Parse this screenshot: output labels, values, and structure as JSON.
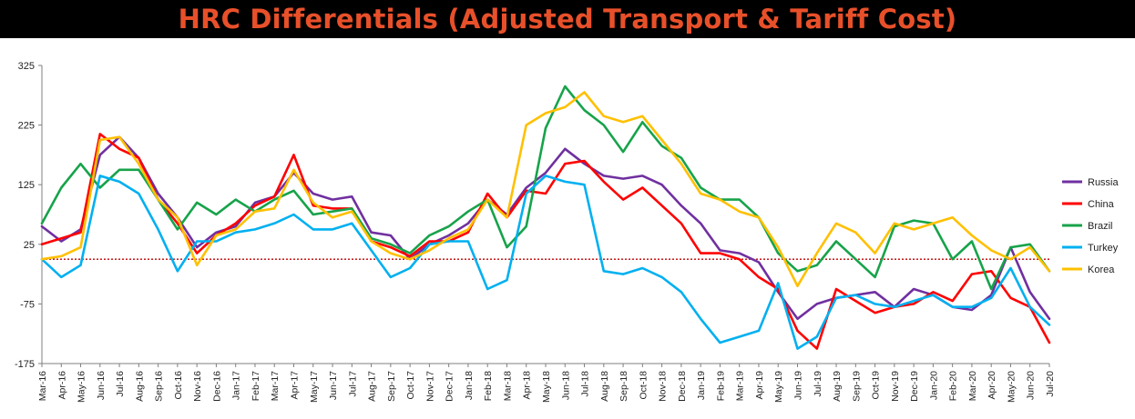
{
  "chart_data": {
    "type": "line",
    "title": "HRC Differentials (Adjusted Transport & Tariff Cost)",
    "xlabel": "",
    "ylabel": "",
    "ylim": [
      -175,
      325
    ],
    "yticks": [
      325,
      225,
      125,
      25,
      -75,
      -175
    ],
    "reference_line": {
      "y": 0,
      "style": "dotted",
      "color": "#c00000"
    },
    "x_labels": [
      "Mar-16",
      "Apr-16",
      "May-16",
      "Jun-16",
      "Jul-16",
      "Aug-16",
      "Sep-16",
      "Oct-16",
      "Nov-16",
      "Dec-16",
      "Jan-17",
      "Feb-17",
      "Mar-17",
      "Apr-17",
      "May-17",
      "Jun-17",
      "Jul-17",
      "Aug-17",
      "Sep-17",
      "Oct-17",
      "Nov-17",
      "Dec-17",
      "Jan-18",
      "Feb-18",
      "Mar-18",
      "Apr-18",
      "May-18",
      "Jun-18",
      "Jul-18",
      "Aug-18",
      "Sep-18",
      "Oct-18",
      "Nov-18",
      "Dec-18",
      "Jan-19",
      "Feb-19",
      "Mar-19",
      "Apr-19",
      "May-19",
      "Jun-19",
      "Jul-19",
      "Aug-19",
      "Sep-19",
      "Oct-19",
      "Nov-19",
      "Dec-19",
      "Jan-20",
      "Feb-20",
      "Mar-20",
      "Apr-20",
      "May-20",
      "Jun-20",
      "Jul-20"
    ],
    "legend": "right",
    "grid": false,
    "series": [
      {
        "name": "Russia",
        "color": "#7030a0",
        "values": [
          [
            0,
            55
          ],
          [
            1,
            30
          ],
          [
            2,
            50
          ],
          [
            3,
            175
          ],
          [
            4,
            205
          ],
          [
            5,
            170
          ],
          [
            6,
            110
          ],
          [
            7,
            70
          ],
          [
            8,
            20
          ],
          [
            9,
            45
          ],
          [
            10,
            55
          ],
          [
            11,
            95
          ],
          [
            12,
            105
          ],
          [
            13,
            145
          ],
          [
            14,
            110
          ],
          [
            15,
            100
          ],
          [
            16,
            105
          ],
          [
            17,
            45
          ],
          [
            18,
            40
          ],
          [
            19,
            0
          ],
          [
            20,
            25
          ],
          [
            21,
            40
          ],
          [
            22,
            60
          ],
          [
            23,
            100
          ],
          [
            24,
            75
          ],
          [
            25,
            120
          ],
          [
            26,
            145
          ],
          [
            27,
            185
          ],
          [
            28,
            160
          ],
          [
            29,
            140
          ],
          [
            30,
            135
          ],
          [
            31,
            140
          ],
          [
            32,
            125
          ],
          [
            33,
            90
          ],
          [
            34,
            60
          ],
          [
            35,
            15
          ],
          [
            36,
            10
          ],
          [
            37,
            -5
          ],
          [
            38,
            -55
          ],
          [
            39,
            -100
          ],
          [
            40,
            -75
          ],
          [
            41,
            -65
          ],
          [
            42,
            -60
          ],
          [
            43,
            -55
          ],
          [
            44,
            -80
          ],
          [
            45,
            -50
          ],
          [
            46,
            -60
          ],
          [
            47,
            -80
          ],
          [
            48,
            -85
          ],
          [
            49,
            -60
          ],
          [
            50,
            20
          ],
          [
            51,
            -55
          ],
          [
            52,
            -100
          ]
        ]
      },
      {
        "name": "China",
        "color": "#ff0000",
        "values": [
          [
            0,
            25
          ],
          [
            1,
            35
          ],
          [
            2,
            45
          ],
          [
            3,
            210
          ],
          [
            4,
            185
          ],
          [
            5,
            170
          ],
          [
            6,
            100
          ],
          [
            7,
            60
          ],
          [
            8,
            10
          ],
          [
            9,
            40
          ],
          [
            10,
            60
          ],
          [
            11,
            90
          ],
          [
            12,
            105
          ],
          [
            13,
            175
          ],
          [
            14,
            90
          ],
          [
            15,
            85
          ],
          [
            16,
            85
          ],
          [
            17,
            30
          ],
          [
            18,
            20
          ],
          [
            19,
            5
          ],
          [
            20,
            30
          ],
          [
            21,
            30
          ],
          [
            22,
            45
          ],
          [
            23,
            110
          ],
          [
            24,
            70
          ],
          [
            25,
            115
          ],
          [
            26,
            110
          ],
          [
            27,
            160
          ],
          [
            28,
            165
          ],
          [
            29,
            130
          ],
          [
            30,
            100
          ],
          [
            31,
            120
          ],
          [
            32,
            90
          ],
          [
            33,
            60
          ],
          [
            34,
            10
          ],
          [
            35,
            10
          ],
          [
            36,
            0
          ],
          [
            37,
            -30
          ],
          [
            38,
            -50
          ],
          [
            39,
            -120
          ],
          [
            40,
            -150
          ],
          [
            41,
            -50
          ],
          [
            42,
            -70
          ],
          [
            43,
            -90
          ],
          [
            44,
            -80
          ],
          [
            45,
            -75
          ],
          [
            46,
            -55
          ],
          [
            47,
            -70
          ],
          [
            48,
            -25
          ],
          [
            49,
            -20
          ],
          [
            50,
            -65
          ],
          [
            51,
            -80
          ],
          [
            52,
            -140
          ]
        ]
      },
      {
        "name": "Brazil",
        "color": "#17a34a",
        "values": [
          [
            0,
            60
          ],
          [
            1,
            120
          ],
          [
            2,
            160
          ],
          [
            3,
            120
          ],
          [
            4,
            150
          ],
          [
            5,
            150
          ],
          [
            6,
            100
          ],
          [
            7,
            50
          ],
          [
            8,
            95
          ],
          [
            9,
            75
          ],
          [
            10,
            100
          ],
          [
            11,
            80
          ],
          [
            12,
            100
          ],
          [
            13,
            115
          ],
          [
            14,
            75
          ],
          [
            15,
            80
          ],
          [
            16,
            85
          ],
          [
            17,
            35
          ],
          [
            18,
            25
          ],
          [
            19,
            10
          ],
          [
            20,
            40
          ],
          [
            21,
            55
          ],
          [
            22,
            80
          ],
          [
            23,
            100
          ],
          [
            24,
            20
          ],
          [
            25,
            55
          ],
          [
            26,
            220
          ],
          [
            27,
            290
          ],
          [
            28,
            250
          ],
          [
            29,
            225
          ],
          [
            30,
            180
          ],
          [
            31,
            230
          ],
          [
            32,
            190
          ],
          [
            33,
            170
          ],
          [
            34,
            120
          ],
          [
            35,
            100
          ],
          [
            36,
            100
          ],
          [
            37,
            70
          ],
          [
            38,
            10
          ],
          [
            39,
            -20
          ],
          [
            40,
            -10
          ],
          [
            41,
            30
          ],
          [
            42,
            0
          ],
          [
            43,
            -30
          ],
          [
            44,
            55
          ],
          [
            45,
            65
          ],
          [
            46,
            60
          ],
          [
            47,
            0
          ],
          [
            48,
            30
          ],
          [
            49,
            -50
          ],
          [
            50,
            20
          ],
          [
            51,
            25
          ],
          [
            52,
            -20
          ]
        ]
      },
      {
        "name": "Turkey",
        "color": "#00b0f0",
        "values": [
          [
            0,
            0
          ],
          [
            1,
            -30
          ],
          [
            2,
            -10
          ],
          [
            3,
            140
          ],
          [
            4,
            130
          ],
          [
            5,
            110
          ],
          [
            6,
            50
          ],
          [
            7,
            -20
          ],
          [
            8,
            30
          ],
          [
            9,
            30
          ],
          [
            10,
            45
          ],
          [
            11,
            50
          ],
          [
            12,
            60
          ],
          [
            13,
            75
          ],
          [
            14,
            50
          ],
          [
            15,
            50
          ],
          [
            16,
            60
          ],
          [
            17,
            15
          ],
          [
            18,
            -30
          ],
          [
            19,
            -15
          ],
          [
            20,
            25
          ],
          [
            21,
            30
          ],
          [
            22,
            30
          ],
          [
            23,
            -50
          ],
          [
            24,
            -35
          ],
          [
            25,
            110
          ],
          [
            26,
            140
          ],
          [
            27,
            130
          ],
          [
            28,
            125
          ],
          [
            29,
            -20
          ],
          [
            30,
            -25
          ],
          [
            31,
            -15
          ],
          [
            32,
            -30
          ],
          [
            33,
            -55
          ],
          [
            34,
            -100
          ],
          [
            35,
            -140
          ],
          [
            36,
            -130
          ],
          [
            37,
            -120
          ],
          [
            38,
            -40
          ],
          [
            39,
            -150
          ],
          [
            40,
            -130
          ],
          [
            41,
            -65
          ],
          [
            42,
            -60
          ],
          [
            43,
            -75
          ],
          [
            44,
            -80
          ],
          [
            45,
            -70
          ],
          [
            46,
            -60
          ],
          [
            47,
            -80
          ],
          [
            48,
            -80
          ],
          [
            49,
            -65
          ],
          [
            50,
            -15
          ],
          [
            51,
            -80
          ],
          [
            52,
            -110
          ]
        ]
      },
      {
        "name": "Korea",
        "color": "#ffc000",
        "values": [
          [
            0,
            0
          ],
          [
            1,
            5
          ],
          [
            2,
            20
          ],
          [
            3,
            200
          ],
          [
            4,
            205
          ],
          [
            5,
            160
          ],
          [
            6,
            100
          ],
          [
            7,
            70
          ],
          [
            8,
            -10
          ],
          [
            9,
            40
          ],
          [
            10,
            50
          ],
          [
            11,
            80
          ],
          [
            12,
            85
          ],
          [
            13,
            150
          ],
          [
            14,
            95
          ],
          [
            15,
            70
          ],
          [
            16,
            80
          ],
          [
            17,
            30
          ],
          [
            18,
            10
          ],
          [
            19,
            0
          ],
          [
            20,
            15
          ],
          [
            21,
            35
          ],
          [
            22,
            50
          ],
          [
            23,
            100
          ],
          [
            24,
            70
          ],
          [
            25,
            225
          ],
          [
            26,
            245
          ],
          [
            27,
            255
          ],
          [
            28,
            280
          ],
          [
            29,
            240
          ],
          [
            30,
            230
          ],
          [
            31,
            240
          ],
          [
            32,
            200
          ],
          [
            33,
            160
          ],
          [
            34,
            110
          ],
          [
            35,
            100
          ],
          [
            36,
            80
          ],
          [
            37,
            70
          ],
          [
            38,
            20
          ],
          [
            39,
            -45
          ],
          [
            40,
            10
          ],
          [
            41,
            60
          ],
          [
            42,
            45
          ],
          [
            43,
            10
          ],
          [
            44,
            60
          ],
          [
            45,
            50
          ],
          [
            46,
            60
          ],
          [
            47,
            70
          ],
          [
            48,
            40
          ],
          [
            49,
            15
          ],
          [
            50,
            0
          ],
          [
            51,
            20
          ],
          [
            52,
            -20
          ]
        ]
      }
    ]
  }
}
